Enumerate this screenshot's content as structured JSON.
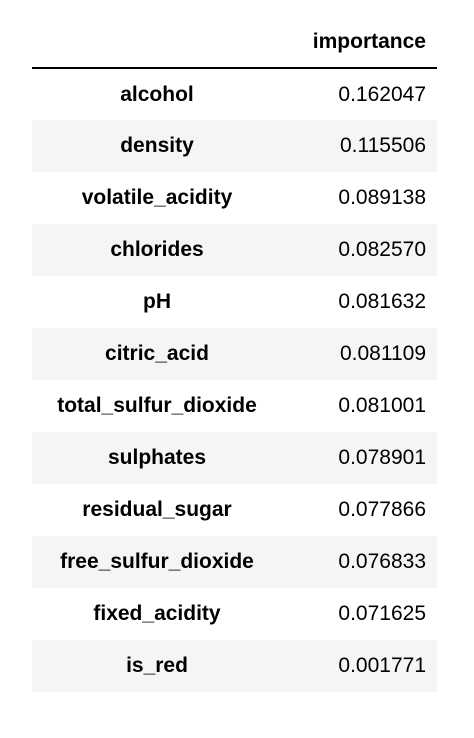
{
  "table": {
    "column_header": "importance",
    "rows": [
      {
        "feature": "alcohol",
        "importance": "0.162047"
      },
      {
        "feature": "density",
        "importance": "0.115506"
      },
      {
        "feature": "volatile_acidity",
        "importance": "0.089138"
      },
      {
        "feature": "chlorides",
        "importance": "0.082570"
      },
      {
        "feature": "pH",
        "importance": "0.081632"
      },
      {
        "feature": "citric_acid",
        "importance": "0.081109"
      },
      {
        "feature": "total_sulfur_dioxide",
        "importance": "0.081001"
      },
      {
        "feature": "sulphates",
        "importance": "0.078901"
      },
      {
        "feature": "residual_sugar",
        "importance": "0.077866"
      },
      {
        "feature": "free_sulfur_dioxide",
        "importance": "0.076833"
      },
      {
        "feature": "fixed_acidity",
        "importance": "0.071625"
      },
      {
        "feature": "is_red",
        "importance": "0.001771"
      }
    ],
    "colors": {
      "stripe": "#f5f5f5",
      "header_rule": "#000000"
    }
  }
}
